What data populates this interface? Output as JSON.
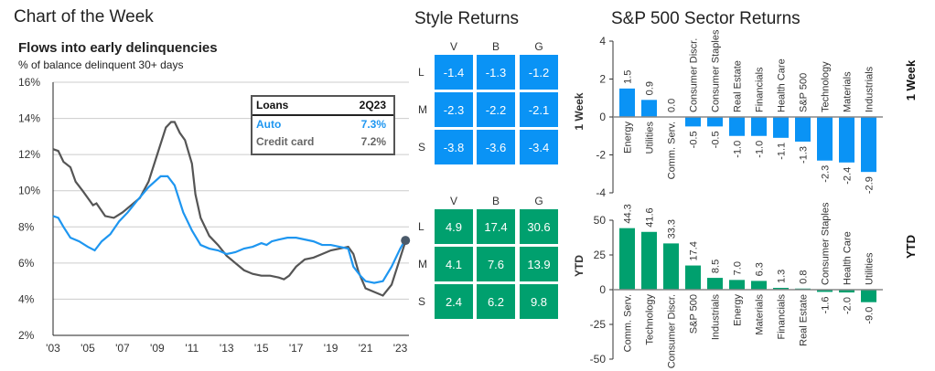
{
  "page_title": "Chart of the Week",
  "colors": {
    "auto": "#1E96F0",
    "credit": "#555555",
    "blue_cell": "#0A93F5",
    "green_cell": "#00A06E",
    "blue_bar": "#0A93F5",
    "green_bar": "#00A06E"
  },
  "chart_data": [
    {
      "type": "line",
      "title": "Flows into early delinquencies",
      "subtitle": "% of balance delinquent 30+ days",
      "ylim": [
        2,
        16
      ],
      "yticks": [
        "2%",
        "4%",
        "6%",
        "8%",
        "10%",
        "12%",
        "14%",
        "16%"
      ],
      "ytick_values": [
        2,
        4,
        6,
        8,
        10,
        12,
        14,
        16
      ],
      "xlim": [
        2003,
        2023.5
      ],
      "xticks": [
        "'03",
        "'05",
        "'07",
        "'09",
        "'11",
        "'13",
        "'15",
        "'17",
        "'19",
        "'21",
        "'23"
      ],
      "xtick_values": [
        2003,
        2005,
        2007,
        2009,
        2011,
        2013,
        2015,
        2017,
        2019,
        2021,
        2023
      ],
      "legend": {
        "header": [
          "Loans",
          "2Q23"
        ],
        "rows": [
          {
            "name": "Auto",
            "value": "7.3%"
          },
          {
            "name": "Credit card",
            "value": "7.2%"
          }
        ]
      },
      "series": [
        {
          "name": "Auto",
          "x": [
            2003,
            2003.3,
            2003.6,
            2004,
            2004.5,
            2005,
            2005.4,
            2005.8,
            2006.3,
            2006.8,
            2007.3,
            2007.8,
            2008.5,
            2009.2,
            2009.6,
            2010,
            2010.5,
            2011,
            2011.5,
            2012,
            2012.5,
            2013,
            2013.5,
            2014,
            2014.5,
            2015,
            2015.3,
            2015.6,
            2016,
            2016.5,
            2017,
            2017.5,
            2018,
            2018.5,
            2019,
            2019.5,
            2020,
            2020.3,
            2020.7,
            2021,
            2021.5,
            2022,
            2022.5,
            2023,
            2023.3
          ],
          "y": [
            8.6,
            8.5,
            8.0,
            7.4,
            7.2,
            6.9,
            6.7,
            7.2,
            7.6,
            8.3,
            8.8,
            9.4,
            10.2,
            10.8,
            10.8,
            10.3,
            8.8,
            7.8,
            7.0,
            6.8,
            6.7,
            6.5,
            6.6,
            6.8,
            6.9,
            7.1,
            7.0,
            7.2,
            7.3,
            7.4,
            7.4,
            7.3,
            7.2,
            7.0,
            7.0,
            6.9,
            6.8,
            5.8,
            5.3,
            5.0,
            4.9,
            5.0,
            5.8,
            6.8,
            7.3
          ]
        },
        {
          "name": "Credit card",
          "x": [
            2003,
            2003.3,
            2003.6,
            2004,
            2004.3,
            2004.7,
            2005,
            2005.3,
            2005.5,
            2006,
            2006.5,
            2007,
            2007.5,
            2008,
            2008.5,
            2009,
            2009.5,
            2009.8,
            2010,
            2010.3,
            2010.6,
            2011,
            2011.2,
            2011.5,
            2012,
            2012.5,
            2013,
            2013.5,
            2014,
            2014.5,
            2015,
            2015.5,
            2016,
            2016.3,
            2016.6,
            2017,
            2017.5,
            2018,
            2018.5,
            2019,
            2019.5,
            2020,
            2020.3,
            2020.6,
            2021,
            2021.5,
            2022,
            2022.5,
            2023,
            2023.3
          ],
          "y": [
            12.3,
            12.2,
            11.6,
            11.3,
            10.5,
            10.0,
            9.6,
            9.2,
            9.3,
            8.6,
            8.5,
            8.8,
            9.2,
            9.6,
            10.5,
            12.0,
            13.5,
            13.8,
            13.8,
            13.2,
            12.8,
            11.5,
            9.8,
            8.5,
            7.5,
            7.0,
            6.4,
            6.0,
            5.6,
            5.4,
            5.3,
            5.3,
            5.2,
            5.1,
            5.3,
            5.8,
            6.2,
            6.3,
            6.5,
            6.7,
            6.8,
            6.9,
            6.5,
            5.5,
            4.6,
            4.4,
            4.2,
            4.8,
            6.3,
            7.2
          ]
        }
      ]
    },
    {
      "type": "table",
      "title": "Style Returns",
      "columns": [
        "V",
        "B",
        "G"
      ],
      "rows": [
        "L",
        "M",
        "S"
      ],
      "row_label_1week": "1 Week",
      "row_label_ytd": "YTD",
      "week": [
        [
          "-1.4",
          "-1.3",
          "-1.2"
        ],
        [
          "-2.3",
          "-2.2",
          "-2.1"
        ],
        [
          "-3.8",
          "-3.6",
          "-3.4"
        ]
      ],
      "ytd": [
        [
          "4.9",
          "17.4",
          "30.6"
        ],
        [
          "4.1",
          "7.6",
          "13.9"
        ],
        [
          "2.4",
          "6.2",
          "9.8"
        ]
      ]
    },
    {
      "type": "bar",
      "title": "S&P 500 Sector Returns",
      "panel_label": "1 Week",
      "ylim": [
        -4,
        4
      ],
      "yticks": [
        "-4",
        "-2",
        "0",
        "2",
        "4"
      ],
      "ytick_values": [
        -4,
        -2,
        0,
        2,
        4
      ],
      "categories": [
        "Energy",
        "Utilities",
        "Comm. Serv.",
        "Consumer Discr.",
        "Consumer Staples",
        "Real Estate",
        "Financials",
        "Health Care",
        "S&P 500",
        "Technology",
        "Materials",
        "Industrials"
      ],
      "values": [
        1.5,
        0.9,
        0.0,
        -0.5,
        -0.5,
        -1.0,
        -1.0,
        -1.1,
        -1.3,
        -2.3,
        -2.4,
        -2.9
      ],
      "labels": [
        "1.5",
        "0.9",
        "0.0",
        "-0.5",
        "-0.5",
        "-1.0",
        "-1.0",
        "-1.1",
        "-1.3",
        "-2.3",
        "-2.4",
        "-2.9"
      ]
    },
    {
      "type": "bar",
      "panel_label": "YTD",
      "ylim": [
        -50,
        50
      ],
      "yticks": [
        "-50",
        "-25",
        "0",
        "25",
        "50"
      ],
      "ytick_values": [
        -50,
        -25,
        0,
        25,
        50
      ],
      "categories": [
        "Comm. Serv.",
        "Technology",
        "Consumer Discr.",
        "S&P 500",
        "Industrials",
        "Energy",
        "Materials",
        "Financials",
        "Real Estate",
        "Consumer Staples",
        "Health Care",
        "Utilities"
      ],
      "values": [
        44.3,
        41.6,
        33.3,
        17.4,
        8.5,
        7.0,
        6.3,
        1.3,
        0.8,
        -1.6,
        -2.0,
        -9.0
      ],
      "labels": [
        "44.3",
        "41.6",
        "33.3",
        "17.4",
        "8.5",
        "7.0",
        "6.3",
        "1.3",
        "0.8",
        "-1.6",
        "-2.0",
        "-9.0"
      ]
    }
  ]
}
